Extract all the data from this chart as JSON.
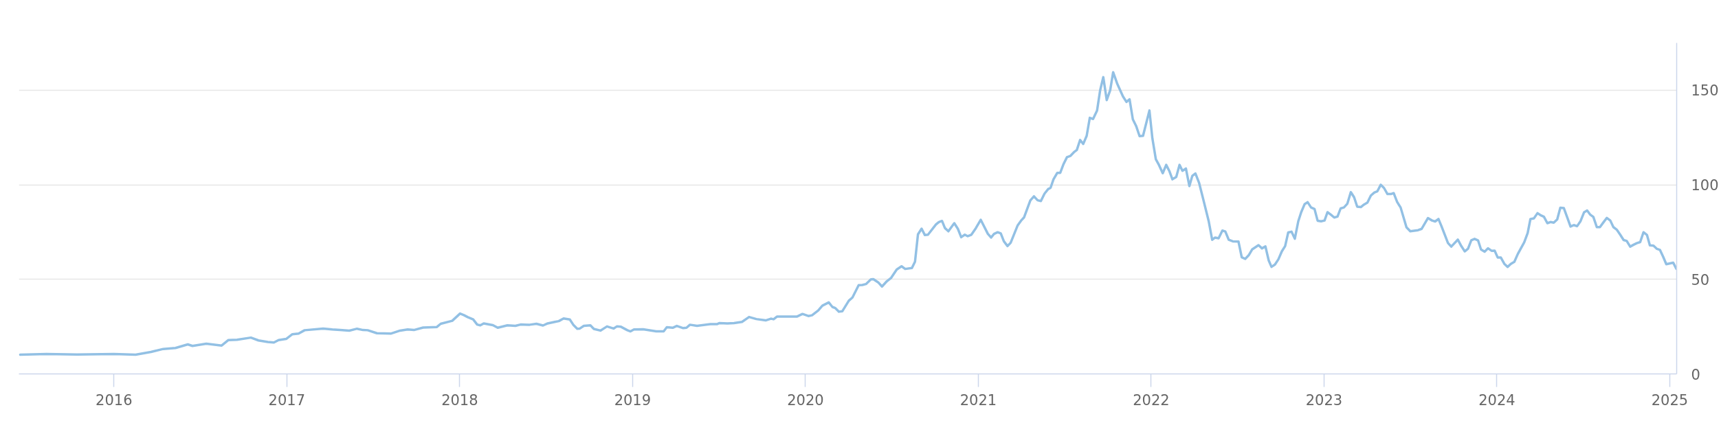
{
  "chart_data": {
    "type": "line",
    "color": "#92c0e4",
    "line_style": "solid",
    "grid": "y",
    "xlim": [
      2015.45,
      2025.04
    ],
    "xticks": [
      2016,
      2017,
      2018,
      2019,
      2020,
      2021,
      2022,
      2023,
      2024,
      2025
    ],
    "ylim": [
      0,
      175
    ],
    "yticks": [
      0,
      50,
      100,
      150
    ],
    "x": [
      2015.457,
      2015.609,
      2015.786,
      2016.0,
      2016.125,
      2016.214,
      2016.285,
      2016.356,
      2016.427,
      2016.454,
      2016.534,
      2016.623,
      2016.662,
      2016.712,
      2016.792,
      2016.836,
      2016.89,
      2016.925,
      2016.952,
      2016.996,
      2017.032,
      2017.068,
      2017.103,
      2017.21,
      2017.263,
      2017.308,
      2017.361,
      2017.406,
      2017.441,
      2017.468,
      2017.521,
      2017.601,
      2017.655,
      2017.699,
      2017.735,
      2017.788,
      2017.868,
      2017.89,
      2017.957,
      2018.002,
      2018.024,
      2018.047,
      2018.078,
      2018.101,
      2018.119,
      2018.139,
      2018.192,
      2018.22,
      2018.276,
      2018.322,
      2018.352,
      2018.405,
      2018.444,
      2018.482,
      2018.509,
      2018.55,
      2018.573,
      2018.601,
      2018.637,
      2018.657,
      2018.68,
      2018.695,
      2018.718,
      2018.756,
      2018.776,
      2018.814,
      2018.852,
      2018.89,
      2018.909,
      2018.931,
      2018.97,
      2018.988,
      2019.008,
      2019.061,
      2019.137,
      2019.18,
      2019.198,
      2019.232,
      2019.256,
      2019.293,
      2019.312,
      2019.332,
      2019.373,
      2019.45,
      2019.488,
      2019.503,
      2019.549,
      2019.587,
      2019.633,
      2019.674,
      2019.716,
      2019.77,
      2019.8,
      2019.816,
      2019.835,
      2019.884,
      2019.95,
      2019.983,
      2020.017,
      2020.038,
      2020.074,
      2020.098,
      2020.135,
      2020.156,
      2020.173,
      2020.194,
      2020.213,
      2020.251,
      2020.272,
      2020.308,
      2020.329,
      2020.35,
      2020.379,
      2020.393,
      2020.421,
      2020.443,
      2020.471,
      2020.496,
      2020.528,
      2020.556,
      2020.577,
      2020.616,
      2020.634,
      2020.651,
      2020.672,
      2020.691,
      2020.709,
      2020.755,
      2020.772,
      2020.79,
      2020.807,
      2020.827,
      2020.861,
      2020.882,
      2020.901,
      2020.922,
      2020.939,
      2020.96,
      2020.986,
      2021.014,
      2021.055,
      2021.074,
      2021.091,
      2021.112,
      2021.13,
      2021.148,
      2021.169,
      2021.187,
      2021.227,
      2021.247,
      2021.265,
      2021.301,
      2021.322,
      2021.343,
      2021.362,
      2021.383,
      2021.404,
      2021.418,
      2021.435,
      2021.457,
      2021.474,
      2021.492,
      2021.513,
      2021.532,
      2021.553,
      2021.57,
      2021.589,
      2021.607,
      2021.627,
      2021.645,
      2021.664,
      2021.687,
      2021.705,
      2021.723,
      2021.743,
      2021.763,
      2021.78,
      2021.803,
      2021.837,
      2021.857,
      2021.875,
      2021.894,
      2021.913,
      2021.933,
      2021.953,
      2021.99,
      2022.007,
      2022.027,
      2022.045,
      2022.067,
      2022.087,
      2022.105,
      2022.123,
      2022.145,
      2022.164,
      2022.181,
      2022.201,
      2022.221,
      2022.238,
      2022.256,
      2022.277,
      2022.3,
      2022.333,
      2022.353,
      2022.37,
      2022.39,
      2022.412,
      2022.429,
      2022.449,
      2022.472,
      2022.505,
      2022.524,
      2022.544,
      2022.564,
      2022.584,
      2022.621,
      2022.641,
      2022.661,
      2022.68,
      2022.696,
      2022.716,
      2022.736,
      2022.756,
      2022.775,
      2022.793,
      2022.812,
      2022.831,
      2022.851,
      2022.868,
      2022.888,
      2022.905,
      2022.925,
      2022.945,
      2022.963,
      2022.983,
      2023.003,
      2023.02,
      2023.041,
      2023.059,
      2023.078,
      2023.096,
      2023.115,
      2023.135,
      2023.155,
      2023.174,
      2023.192,
      2023.213,
      2023.231,
      2023.251,
      2023.271,
      2023.291,
      2023.308,
      2023.328,
      2023.347,
      2023.367,
      2023.387,
      2023.403,
      2023.423,
      2023.443,
      2023.477,
      2023.499,
      2023.544,
      2023.565,
      2023.601,
      2023.625,
      2023.643,
      2023.662,
      2023.679,
      2023.717,
      2023.736,
      2023.774,
      2023.794,
      2023.814,
      2023.833,
      2023.852,
      2023.871,
      2023.891,
      2023.908,
      2023.929,
      2023.949,
      2023.969,
      2023.987,
      2024.005,
      2024.023,
      2024.043,
      2024.062,
      2024.081,
      2024.101,
      2024.121,
      2024.158,
      2024.178,
      2024.194,
      2024.214,
      2024.235,
      2024.255,
      2024.272,
      2024.292,
      2024.31,
      2024.329,
      2024.349,
      2024.367,
      2024.387,
      2024.407,
      2024.426,
      2024.445,
      2024.464,
      2024.484,
      2024.504,
      2024.522,
      2024.539,
      2024.558,
      2024.578,
      2024.596,
      2024.616,
      2024.636,
      2024.656,
      2024.674,
      2024.693,
      2024.714,
      2024.733,
      2024.751,
      2024.771,
      2024.791,
      2024.809,
      2024.829,
      2024.848,
      2024.868,
      2024.885,
      2024.906,
      2024.926,
      2024.943,
      2024.962,
      2024.98,
      2025.02,
      2025.038
    ],
    "values": [
      10.2,
      10.5,
      10.3,
      10.5,
      10.2,
      11.6,
      13.2,
      13.7,
      15.6,
      14.8,
      16.0,
      15.0,
      17.9,
      18.1,
      19.2,
      17.7,
      16.9,
      16.6,
      17.9,
      18.5,
      21.0,
      21.3,
      23.1,
      24.0,
      23.5,
      23.2,
      22.9,
      23.9,
      23.2,
      23.1,
      21.5,
      21.3,
      22.9,
      23.5,
      23.2,
      24.5,
      24.8,
      26.5,
      28.1,
      31.9,
      31.1,
      30.0,
      28.8,
      26.1,
      25.7,
      26.7,
      25.8,
      24.4,
      25.7,
      25.4,
      26.1,
      26.0,
      26.5,
      25.6,
      26.7,
      27.5,
      27.9,
      29.3,
      28.8,
      26.0,
      23.9,
      24.0,
      25.4,
      25.7,
      23.8,
      22.9,
      25.1,
      24.0,
      25.1,
      25.0,
      23.1,
      22.5,
      23.5,
      23.6,
      22.5,
      22.5,
      24.7,
      24.4,
      25.4,
      24.2,
      24.4,
      26.0,
      25.4,
      26.3,
      26.3,
      26.9,
      26.7,
      26.9,
      27.5,
      30.1,
      29.0,
      28.3,
      29.2,
      28.9,
      30.3,
      30.3,
      30.3,
      31.7,
      30.6,
      31.0,
      33.5,
      36.1,
      37.8,
      35.4,
      34.8,
      32.9,
      33.1,
      38.7,
      40.4,
      46.9,
      47.0,
      47.5,
      50.0,
      50.1,
      48.4,
      46.2,
      49.0,
      50.8,
      55.2,
      56.9,
      55.5,
      56.0,
      59.4,
      73.8,
      76.8,
      73.4,
      73.6,
      79.0,
      80.3,
      80.9,
      77.1,
      75.4,
      79.7,
      76.7,
      72.3,
      73.6,
      72.8,
      73.6,
      77.1,
      81.5,
      74.1,
      72.1,
      74.0,
      74.9,
      74.3,
      70.1,
      67.6,
      69.3,
      78.4,
      81.0,
      82.8,
      91.7,
      93.9,
      91.8,
      91.4,
      95.3,
      97.7,
      98.4,
      102.9,
      106.3,
      106.3,
      110.7,
      114.6,
      115.2,
      117.2,
      118.4,
      123.7,
      121.6,
      125.9,
      135.4,
      134.8,
      139.2,
      150.0,
      156.9,
      144.8,
      150.0,
      159.5,
      153.6,
      146.7,
      143.8,
      145.2,
      134.6,
      131.1,
      125.7,
      125.9,
      139.3,
      124.6,
      113.5,
      110.5,
      106.1,
      110.5,
      107.3,
      102.9,
      104.1,
      110.5,
      107.4,
      108.6,
      99.3,
      104.7,
      106.0,
      101.1,
      92.8,
      80.7,
      70.9,
      72.1,
      71.7,
      75.8,
      75.3,
      70.9,
      70.1,
      70.0,
      61.7,
      60.8,
      62.7,
      65.8,
      68.1,
      66.4,
      67.4,
      60.0,
      56.6,
      57.8,
      60.6,
      64.8,
      67.6,
      74.8,
      75.2,
      71.5,
      80.7,
      85.5,
      89.8,
      90.8,
      88.0,
      87.2,
      81.0,
      80.7,
      81.1,
      85.5,
      84.1,
      82.7,
      83.2,
      87.5,
      88.0,
      90.0,
      96.1,
      93.4,
      88.4,
      88.2,
      89.5,
      90.6,
      94.3,
      95.9,
      96.5,
      100.0,
      98.3,
      95.1,
      95.1,
      95.6,
      90.9,
      88.0,
      77.5,
      75.4,
      76.0,
      76.7,
      82.4,
      81.1,
      80.6,
      81.9,
      78.2,
      69.2,
      67.3,
      71.0,
      67.6,
      64.8,
      66.2,
      70.7,
      71.4,
      70.6,
      65.8,
      64.6,
      66.4,
      65.1,
      65.2,
      61.5,
      61.5,
      58.2,
      56.6,
      58.2,
      59.3,
      63.4,
      69.6,
      74.5,
      81.9,
      82.2,
      85.0,
      83.8,
      83.1,
      79.7,
      80.3,
      80.0,
      81.7,
      87.9,
      87.7,
      82.7,
      77.9,
      78.7,
      78.1,
      80.8,
      85.4,
      86.4,
      84.3,
      83.0,
      77.6,
      77.6,
      80.1,
      82.5,
      81.1,
      77.6,
      76.3,
      73.5,
      70.8,
      70.3,
      67.3,
      68.3,
      69.1,
      69.7,
      74.9,
      73.5,
      68.0,
      67.8,
      66.1,
      65.6,
      61.9,
      58.0,
      58.8,
      55.6
    ]
  }
}
